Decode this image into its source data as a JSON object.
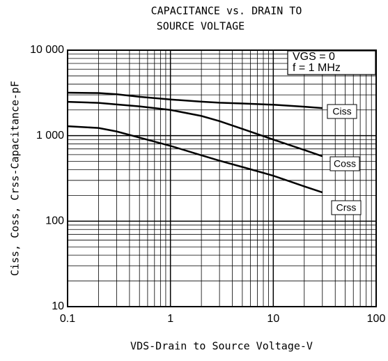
{
  "chart_data": {
    "type": "line",
    "title": [
      "CAPACITANCE vs. DRAIN TO",
      "SOURCE VOLTAGE"
    ],
    "xlabel": "VDS-Drain to Source Voltage-V",
    "ylabel": "Ciss, Coss, Crss-Capacitance-pF",
    "annotations": [
      "VGS = 0",
      "f = 1 MHz"
    ],
    "x": [
      0.1,
      0.2,
      0.3,
      0.5,
      1,
      2,
      3,
      5,
      10,
      20,
      30
    ],
    "series": [
      {
        "name": "Ciss",
        "color": "#000000",
        "values": [
          3180,
          3150,
          3050,
          2850,
          2650,
          2500,
          2430,
          2380,
          2300,
          2180,
          2100
        ]
      },
      {
        "name": "Coss",
        "color": "#000000",
        "values": [
          2490,
          2420,
          2320,
          2200,
          2000,
          1700,
          1480,
          1200,
          900,
          680,
          575
        ]
      },
      {
        "name": "Crss",
        "color": "#000000",
        "values": [
          1290,
          1230,
          1120,
          950,
          760,
          590,
          510,
          430,
          340,
          255,
          217
        ]
      }
    ],
    "xlim": [
      0.1,
      100
    ],
    "xticks": [
      0.1,
      1,
      10,
      100
    ],
    "ylim": [
      10,
      10000
    ],
    "yticks": [
      10,
      100,
      {
        "value": 1000,
        "label": "1 000"
      },
      {
        "value": 10000,
        "label": "10 000"
      }
    ],
    "xlog": true,
    "ylog": true,
    "grid": true,
    "minor_grid": true
  }
}
